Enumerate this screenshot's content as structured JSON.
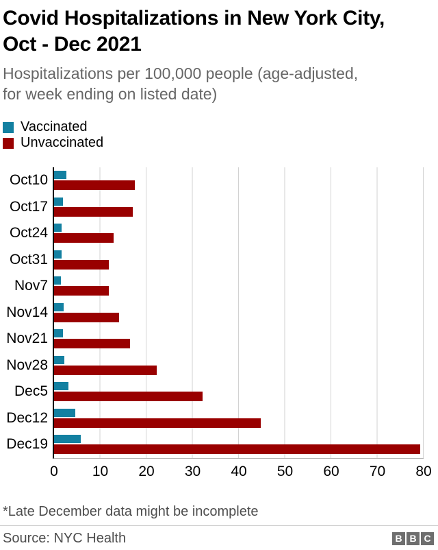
{
  "header": {
    "title_lines": [
      "Covid Hospitalizations in New York City,",
      "Oct - Dec 2021"
    ],
    "subtitle_lines": [
      "Hospitalizations per 100,000 people (age-adjusted,",
      "for week ending on listed date)"
    ]
  },
  "chart_data": {
    "type": "bar",
    "orientation": "horizontal",
    "title": "Covid Hospitalizations in New York City, Oct - Dec 2021",
    "subtitle": "Hospitalizations per 100,000 people (age-adjusted, for week ending on listed date)",
    "categories": [
      "Oct10",
      "Oct17",
      "Oct24",
      "Oct31",
      "Nov7",
      "Nov14",
      "Nov21",
      "Nov28",
      "Dec5",
      "Dec12",
      "Dec19"
    ],
    "series": [
      {
        "name": "Vaccinated",
        "color": "#1380A1",
        "values": [
          2.7,
          1.9,
          1.7,
          1.7,
          1.5,
          2.0,
          1.9,
          2.2,
          3.1,
          4.6,
          5.8
        ]
      },
      {
        "name": "Unvaccinated",
        "color": "#990000",
        "values": [
          17.5,
          17.0,
          12.9,
          11.9,
          11.8,
          14.0,
          16.5,
          22.2,
          32.2,
          44.7,
          79.2
        ]
      }
    ],
    "xlim": [
      0,
      80
    ],
    "x_ticks": [
      0,
      10,
      20,
      30,
      40,
      50,
      60,
      70,
      80
    ],
    "grid": "vertical-gridlines-on",
    "legend_position": "top-left"
  },
  "footer": {
    "footnote": "*Late December data might be incomplete",
    "source": "Source: NYC Health",
    "logo_letters": [
      "B",
      "B",
      "C"
    ]
  },
  "colors": {
    "vaccinated": "#1380A1",
    "unvaccinated": "#990000",
    "logo_gray": "#6e6e6e"
  }
}
